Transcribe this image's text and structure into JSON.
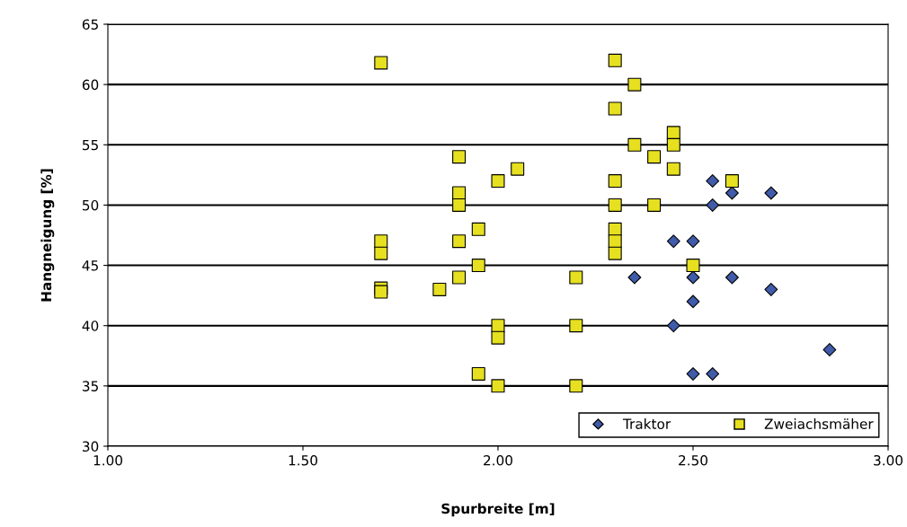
{
  "chart_data": {
    "type": "scatter",
    "xlabel": "Spurbreite [m]",
    "ylabel": "Hangneigung [%]",
    "xlim": [
      1.0,
      3.0
    ],
    "xticks": [
      {
        "value": 1.0,
        "label": "1.00"
      },
      {
        "value": 1.5,
        "label": "1.50"
      },
      {
        "value": 2.0,
        "label": "2.00"
      },
      {
        "value": 2.5,
        "label": "2.50"
      },
      {
        "value": 3.0,
        "label": "3.00"
      }
    ],
    "ylim": [
      30,
      65
    ],
    "yticks": [
      30,
      35,
      40,
      45,
      50,
      55,
      60,
      65
    ],
    "grid": "y",
    "legend": "bottom right",
    "series": [
      {
        "name": "Traktor",
        "color": "#3f5ba9",
        "marker": "diamond",
        "x": [
          2.35,
          2.45,
          2.45,
          2.5,
          2.5,
          2.5,
          2.5,
          2.55,
          2.55,
          2.55,
          2.6,
          2.6,
          2.7,
          2.7,
          2.85
        ],
        "values": [
          44,
          47,
          40,
          47,
          44,
          42,
          36,
          52,
          50,
          36,
          51,
          44,
          51,
          43,
          38
        ]
      },
      {
        "name": "Zweiachsmäher",
        "color": "#e6e020",
        "marker": "square",
        "x": [
          1.7,
          1.7,
          1.7,
          1.7,
          1.7,
          1.85,
          1.9,
          1.9,
          1.9,
          1.9,
          1.9,
          1.95,
          1.95,
          1.95,
          2.0,
          2.0,
          2.0,
          2.0,
          2.05,
          2.2,
          2.2,
          2.2,
          2.3,
          2.3,
          2.3,
          2.3,
          2.3,
          2.3,
          2.3,
          2.35,
          2.35,
          2.4,
          2.4,
          2.45,
          2.45,
          2.45,
          2.5,
          2.6
        ],
        "values": [
          61.8,
          47,
          46,
          43.1,
          42.8,
          43,
          54,
          51,
          50,
          47,
          44,
          48,
          45,
          36,
          52,
          40,
          39,
          35,
          53,
          44,
          40,
          35,
          62,
          58,
          52,
          50,
          48,
          47,
          46,
          60,
          55,
          54,
          50,
          56,
          55,
          53,
          45,
          52
        ]
      }
    ]
  }
}
